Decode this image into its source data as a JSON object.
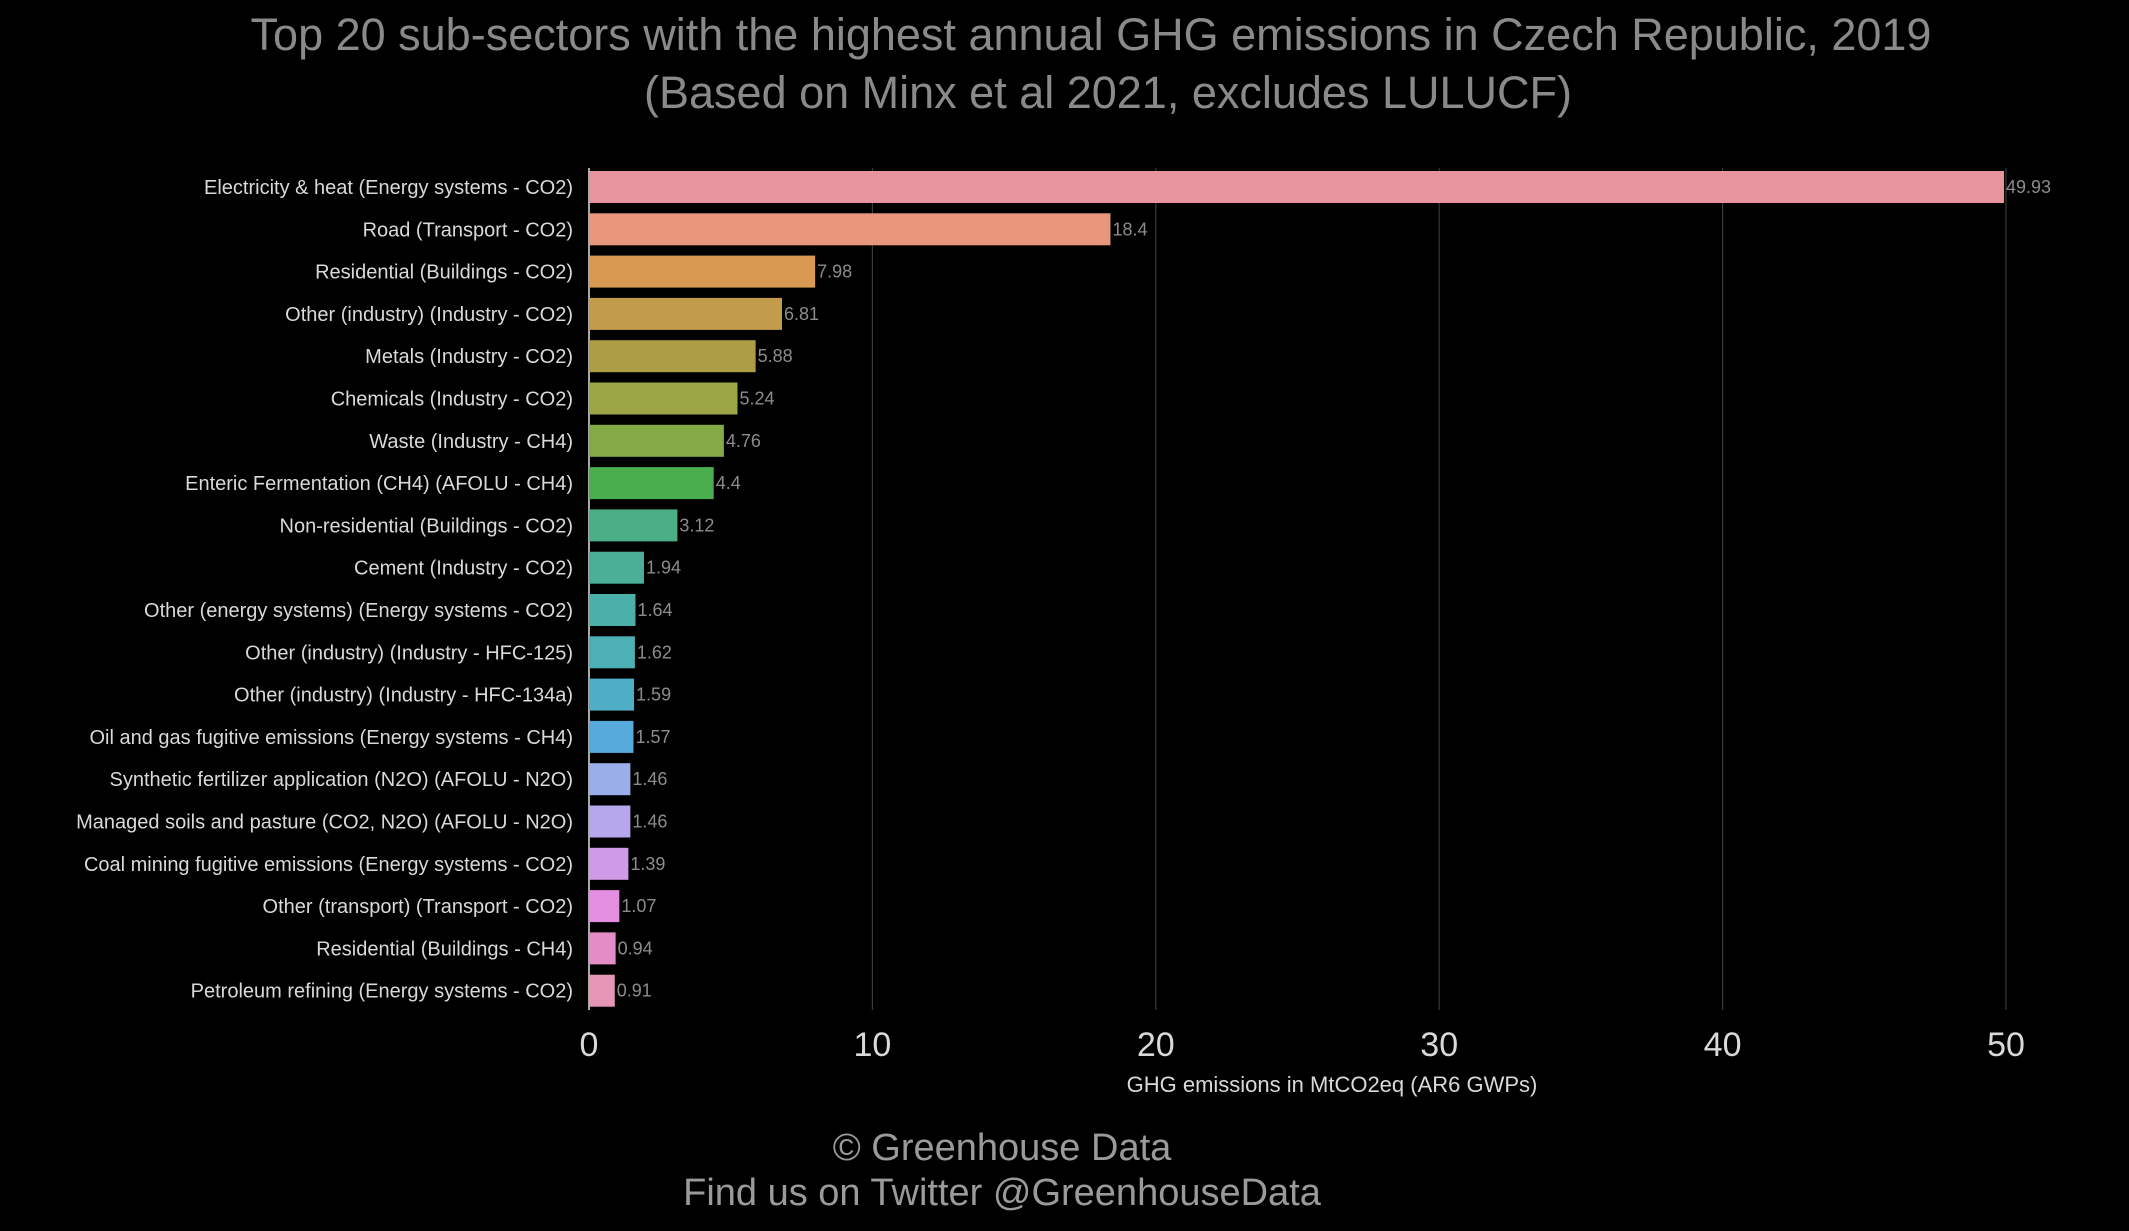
{
  "chart_data": {
    "type": "bar",
    "orientation": "horizontal",
    "title_line1": "Top 20 sub-sectors with the highest annual GHG emissions in Czech Republic, 2019",
    "title_line2": "(Based on Minx et al 2021, excludes LULUCF)",
    "xlabel": "GHG emissions in MtCO2eq (AR6 GWPs)",
    "ylabel": "",
    "xlim": [
      0,
      50
    ],
    "xticks": [
      "0",
      "10",
      "20",
      "30",
      "40",
      "50"
    ],
    "grid": "vertical",
    "categories": [
      "Electricity & heat (Energy systems - CO2)",
      "Road (Transport - CO2)",
      "Residential (Buildings - CO2)",
      "Other (industry) (Industry - CO2)",
      "Metals (Industry - CO2)",
      "Chemicals (Industry - CO2)",
      "Waste (Industry - CH4)",
      "Enteric Fermentation (CH4) (AFOLU - CH4)",
      "Non-residential (Buildings - CO2)",
      "Cement (Industry - CO2)",
      "Other (energy systems) (Energy systems - CO2)",
      "Other (industry) (Industry - HFC-125)",
      "Other (industry) (Industry - HFC-134a)",
      "Oil and gas fugitive emissions (Energy systems - CH4)",
      "Synthetic fertilizer application (N2O) (AFOLU - N2O)",
      "Managed soils and pasture (CO2, N2O) (AFOLU - N2O)",
      "Coal mining fugitive emissions (Energy systems - CO2)",
      "Other (transport) (Transport - CO2)",
      "Residential (Buildings - CH4)",
      "Petroleum refining (Energy systems - CO2)"
    ],
    "values": [
      49.93,
      18.4,
      7.98,
      6.81,
      5.88,
      5.24,
      4.76,
      4.4,
      3.12,
      1.94,
      1.64,
      1.62,
      1.59,
      1.57,
      1.46,
      1.46,
      1.39,
      1.07,
      0.94,
      0.91
    ],
    "value_labels": [
      "49.93",
      "18.4",
      "7.98",
      "6.81",
      "5.88",
      "5.24",
      "4.76",
      "4.4",
      "3.12",
      "1.94",
      "1.64",
      "1.62",
      "1.59",
      "1.57",
      "1.46",
      "1.46",
      "1.39",
      "1.07",
      "0.94",
      "0.91"
    ],
    "colors": [
      "#e8949e",
      "#e8977d",
      "#d89a52",
      "#c29c4a",
      "#ad9d45",
      "#9da646",
      "#84aa45",
      "#4aae4d",
      "#4cae86",
      "#4aaf96",
      "#4bb0a8",
      "#4cb0b5",
      "#4eaec5",
      "#56abdc",
      "#9aaeea",
      "#b6a6ec",
      "#cf9ae8",
      "#e38ee0",
      "#e38cc5",
      "#e596b6"
    ]
  },
  "footer": {
    "line1": "© Greenhouse Data",
    "line2": "Find us on Twitter @GreenhouseData"
  },
  "theme": {
    "background": "#000000",
    "title_color": "#8a8a8a",
    "text_color": "#d9d9d9",
    "value_label_color": "#8c8c8c",
    "grid_color": "#3a3a3a",
    "footer_color": "#9a9a9a"
  }
}
